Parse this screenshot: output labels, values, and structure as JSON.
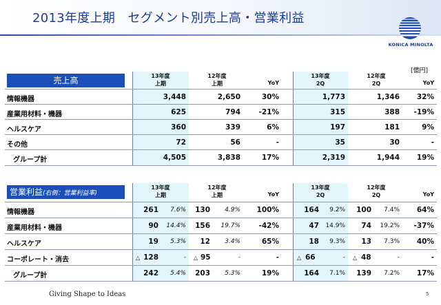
{
  "title": "2013年度上期　セグメント別売上高・営業利益",
  "logo_text": "KONICA MINOLTA",
  "unit": "[億円]",
  "sales": {
    "label": "売上高",
    "headers": {
      "c1_line1": "13年度",
      "c1_line2": "上期",
      "c2_line1": "12年度",
      "c2_line2": "上期",
      "c3": "YoY",
      "c4_line1": "13年度",
      "c4_line2": "2Q",
      "c5_line1": "12年度",
      "c5_line2": "2Q",
      "c6": "YoY"
    },
    "rows": [
      {
        "label": "情報機器",
        "h1_13": "3,448",
        "h1_12": "2,650",
        "yoy_h1": "30%",
        "q2_13": "1,773",
        "q2_12": "1,346",
        "yoy_q2": "32%"
      },
      {
        "label": "産業用材料・機器",
        "h1_13": "625",
        "h1_12": "794",
        "yoy_h1": "-21%",
        "q2_13": "315",
        "q2_12": "388",
        "yoy_q2": "-19%"
      },
      {
        "label": "ヘルスケア",
        "h1_13": "360",
        "h1_12": "339",
        "yoy_h1": "6%",
        "q2_13": "197",
        "q2_12": "181",
        "yoy_q2": "9%"
      },
      {
        "label": "その他",
        "h1_13": "72",
        "h1_12": "56",
        "yoy_h1": "-",
        "q2_13": "35",
        "q2_12": "30",
        "yoy_q2": "-"
      },
      {
        "label": "グループ計",
        "h1_13": "4,505",
        "h1_12": "3,838",
        "yoy_h1": "17%",
        "q2_13": "2,319",
        "q2_12": "1,944",
        "yoy_q2": "19%"
      }
    ]
  },
  "op": {
    "label": "営業利益",
    "sublabel": "(右側：営業利益率)",
    "headers": {
      "c1_line1": "13年度",
      "c1_line2": "上期",
      "c2_line1": "12年度",
      "c2_line2": "上期",
      "c3": "YoY",
      "c4_line1": "13年度",
      "c4_line2": "2Q",
      "c5_line1": "12年度",
      "c5_line2": "2Q",
      "c6": "YoY"
    },
    "rows": [
      {
        "label": "情報機器",
        "h1_13": "261",
        "h1_13_m": "7.6%",
        "h1_12": "130",
        "h1_12_m": "4.9%",
        "yoy_h1": "100%",
        "q2_13": "164",
        "q2_13_m": "9.2%",
        "q2_12": "100",
        "q2_12_m": "7.4%",
        "yoy_q2": "64%"
      },
      {
        "label": "産業用材料・機器",
        "h1_13": "90",
        "h1_13_m": "14.4%",
        "h1_12": "156",
        "h1_12_m": "19.7%",
        "yoy_h1": "-42%",
        "q2_13": "47",
        "q2_13_m": "14.9%",
        "q2_12": "74",
        "q2_12_m": "19.2%",
        "yoy_q2": "-37%"
      },
      {
        "label": "ヘルスケア",
        "h1_13": "19",
        "h1_13_m": "5.3%",
        "h1_12": "12",
        "h1_12_m": "3.4%",
        "yoy_h1": "65%",
        "q2_13": "18",
        "q2_13_m": "9.3%",
        "q2_12": "13",
        "q2_12_m": "7.3%",
        "yoy_q2": "40%"
      },
      {
        "label": "コーポレート・消去",
        "neg": "△",
        "h1_13": "128",
        "h1_13_m": "-",
        "h1_12": "95",
        "h1_12_m": "-",
        "yoy_h1": "-",
        "q2_13": "66",
        "q2_13_m": "-",
        "q2_12": "48",
        "q2_12_m": "-",
        "yoy_q2": "-"
      },
      {
        "label": "グループ計",
        "h1_13": "242",
        "h1_13_m": "5.4%",
        "h1_12": "203",
        "h1_12_m": "5.3%",
        "yoy_h1": "19%",
        "q2_13": "164",
        "q2_13_m": "7.1%",
        "q2_12": "139",
        "q2_12_m": "7.2%",
        "yoy_q2": "17%"
      }
    ]
  },
  "footer": "Giving Shape to Ideas",
  "page_number": "5"
}
